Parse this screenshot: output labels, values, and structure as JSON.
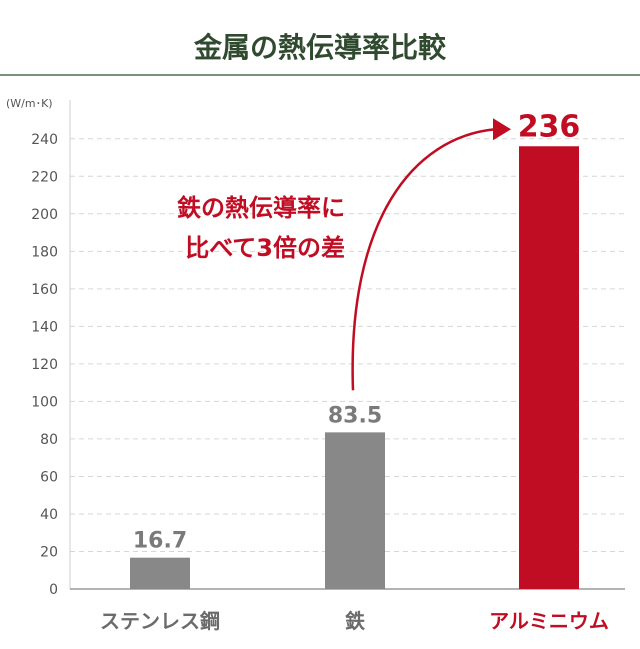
{
  "chart_data": {
    "type": "bar",
    "title": "金属の熱伝導率比較",
    "unit_label": "(W/m･K)",
    "categories": [
      "ステンレス鋼",
      "鉄",
      "アルミニウム"
    ],
    "values": [
      16.7,
      83.5,
      236
    ],
    "value_labels": [
      "16.7",
      "83.5",
      "236"
    ],
    "highlight_index": 2,
    "ylim": [
      0,
      250
    ],
    "yticks": [
      "0",
      "20",
      "40",
      "60",
      "80",
      "100",
      "120",
      "140",
      "160",
      "180",
      "200",
      "220",
      "240"
    ],
    "grid": true,
    "annotation": {
      "lines": [
        "鉄の熱伝導率に",
        "比べて3倍の差"
      ],
      "from_index": 1,
      "to_index": 2
    }
  },
  "colors": {
    "title": "#2f4a2f",
    "title_rule": "#4f6b4f",
    "bar_default": "#888888",
    "bar_highlight": "#c00d23",
    "label_default": "#7a7a7a",
    "label_highlight": "#c00d23",
    "axis_text": "#555555",
    "grid": "#d6d6d6",
    "arrow": "#c00d23"
  }
}
